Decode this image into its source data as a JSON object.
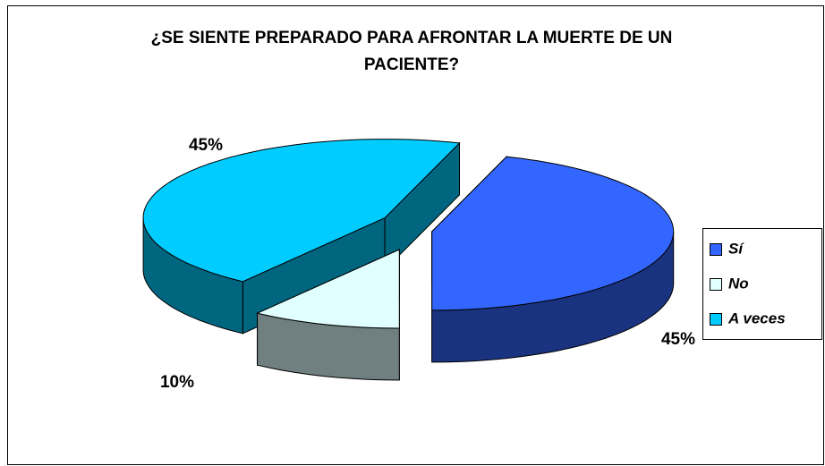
{
  "chart_data": {
    "type": "pie3d",
    "title": "¿SE SIENTE PREPARADO PARA AFRONTAR LA MUERTE DE UN PACIENTE?",
    "categories": [
      "Sí",
      "No",
      "A veces"
    ],
    "values": [
      45,
      10,
      45
    ],
    "value_labels": [
      "45%",
      "10%",
      "45%"
    ],
    "colors": [
      "#3366FF",
      "#E0FFFF",
      "#00CCFF"
    ],
    "legend": "right"
  }
}
